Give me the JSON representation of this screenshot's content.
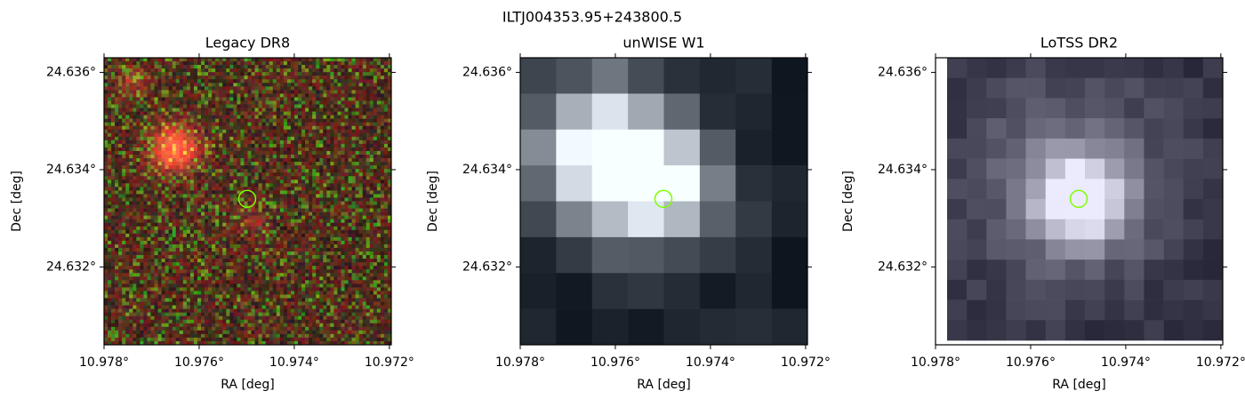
{
  "title": "ILTJ004353.95+243800.5",
  "chart_data": [
    {
      "type": "image",
      "title": "Legacy DR8",
      "xlabel": "RA [deg]",
      "ylabel": "Dec [deg]",
      "xlim": [
        10.978,
        10.97196
      ],
      "ylim": [
        24.6304,
        24.6363
      ],
      "xticks": [
        {
          "value": 10.978,
          "label": "10.978°"
        },
        {
          "value": 10.976,
          "label": "10.976°"
        },
        {
          "value": 10.974,
          "label": "10.974°"
        },
        {
          "value": 10.972,
          "label": "10.972°"
        }
      ],
      "yticks": [
        {
          "value": 24.632,
          "label": "24.632°"
        },
        {
          "value": 24.634,
          "label": "24.634°"
        },
        {
          "value": 24.636,
          "label": "24.636°"
        }
      ],
      "marker": {
        "x": 10.97499,
        "y": 24.6334,
        "color": "#7fff00"
      },
      "style": "color"
    },
    {
      "type": "image",
      "title": "unWISE W1",
      "xlabel": "RA [deg]",
      "ylabel": "Dec [deg]",
      "xlim": [
        10.978,
        10.97196
      ],
      "ylim": [
        24.6304,
        24.6363
      ],
      "xticks": [
        {
          "value": 10.978,
          "label": "10.978°"
        },
        {
          "value": 10.976,
          "label": "10.976°"
        },
        {
          "value": 10.974,
          "label": "10.974°"
        },
        {
          "value": 10.972,
          "label": "10.972°"
        }
      ],
      "yticks": [
        {
          "value": 24.632,
          "label": "24.632°"
        },
        {
          "value": 24.634,
          "label": "24.634°"
        },
        {
          "value": 24.636,
          "label": "24.636°"
        }
      ],
      "marker": {
        "x": 10.97499,
        "y": 24.6334,
        "color": "#7fff00"
      },
      "style": "wise"
    },
    {
      "type": "image",
      "title": "LoTSS DR2",
      "xlabel": "RA [deg]",
      "ylabel": "Dec [deg]",
      "xlim": [
        10.978,
        10.97196
      ],
      "ylim": [
        24.6304,
        24.6363
      ],
      "xticks": [
        {
          "value": 10.978,
          "label": "10.978°"
        },
        {
          "value": 10.976,
          "label": "10.976°"
        },
        {
          "value": 10.974,
          "label": "10.974°"
        },
        {
          "value": 10.972,
          "label": "10.972°"
        }
      ],
      "yticks": [
        {
          "value": 24.632,
          "label": "24.632°"
        },
        {
          "value": 24.634,
          "label": "24.634°"
        },
        {
          "value": 24.636,
          "label": "24.636°"
        }
      ],
      "marker": {
        "x": 10.97499,
        "y": 24.6334,
        "color": "#7fff00"
      },
      "style": "radio"
    }
  ]
}
